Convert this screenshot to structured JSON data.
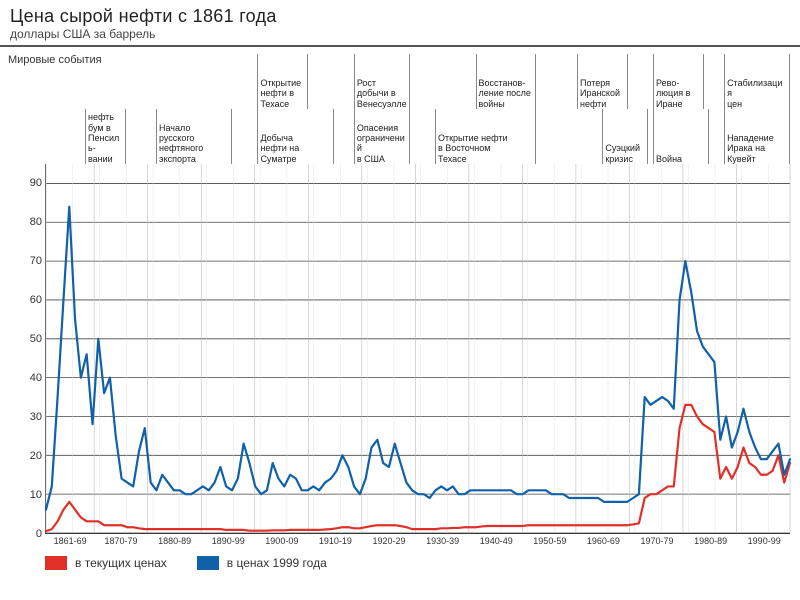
{
  "title": "Цена сырой нефти с 1861 года",
  "subtitle": "доллары США за баррель",
  "events_title": "Мировые события",
  "chart": {
    "type": "line",
    "background_color": "#ffffff",
    "grid_color_major": "#444444",
    "grid_color_minor": "#bbbbbb",
    "axis_color": "#333333",
    "x_year_start": 1861,
    "x_year_end": 2000,
    "ylim": [
      0,
      95
    ],
    "yticks": [
      0,
      10,
      20,
      30,
      40,
      50,
      60,
      70,
      80,
      90
    ],
    "xticks_major": [
      1861,
      1870,
      1880,
      1890,
      1900,
      1910,
      1920,
      1930,
      1940,
      1950,
      1960,
      1970,
      1980,
      1990,
      2000
    ],
    "xtick_labels": [
      "1861-69",
      "1870-79",
      "1880-89",
      "1890-99",
      "1900-09",
      "1910-19",
      "1920-29",
      "1930-39",
      "1940-49",
      "1950-59",
      "1960-69",
      "1970-79",
      "1980-89",
      "1990-99"
    ],
    "label_fontsize": 11,
    "title_fontsize": 18,
    "line_width": 2.2,
    "series": [
      {
        "name": "в текущих ценах",
        "color": "#e03028",
        "values": [
          0.5,
          1,
          3,
          6,
          8,
          6,
          4,
          3,
          3,
          3,
          2,
          2,
          2,
          2,
          1.5,
          1.5,
          1.2,
          1,
          1,
          1,
          1,
          1,
          1,
          1,
          1,
          1,
          1,
          1,
          1,
          1,
          1,
          0.8,
          0.8,
          0.8,
          0.8,
          0.6,
          0.6,
          0.6,
          0.6,
          0.7,
          0.7,
          0.7,
          0.8,
          0.8,
          0.8,
          0.8,
          0.8,
          0.8,
          0.9,
          1,
          1.2,
          1.5,
          1.5,
          1.2,
          1.2,
          1.5,
          1.8,
          2,
          2,
          2,
          2,
          1.8,
          1.5,
          1,
          1,
          1,
          1,
          1,
          1.2,
          1.2,
          1.3,
          1.3,
          1.5,
          1.5,
          1.5,
          1.7,
          1.8,
          1.8,
          1.8,
          1.8,
          1.8,
          1.8,
          1.8,
          2,
          2,
          2,
          2,
          2,
          2,
          2,
          2,
          2,
          2,
          2,
          2,
          2,
          2,
          2,
          2,
          2,
          2,
          2.2,
          2.5,
          9,
          10,
          10,
          11,
          12,
          12,
          27,
          33,
          33,
          30,
          28,
          27,
          26,
          14,
          17,
          14,
          17,
          22,
          18,
          17,
          15,
          15,
          16,
          20,
          13,
          18
        ]
      },
      {
        "name": "в ценах 1999 года",
        "color": "#1060aa",
        "values": [
          6,
          12,
          35,
          60,
          84,
          55,
          40,
          46,
          28,
          50,
          36,
          40,
          25,
          14,
          13,
          12,
          21,
          27,
          13,
          11,
          15,
          13,
          11,
          11,
          10,
          10,
          11,
          12,
          11,
          13,
          17,
          12,
          11,
          14,
          23,
          18,
          12,
          10,
          11,
          18,
          14,
          12,
          15,
          14,
          11,
          11,
          12,
          11,
          13,
          14,
          16,
          20,
          17,
          12,
          10,
          14,
          22,
          24,
          18,
          17,
          23,
          18,
          13,
          11,
          10,
          10,
          9,
          11,
          12,
          11,
          12,
          10,
          10,
          11,
          11,
          11,
          11,
          11,
          11,
          11,
          11,
          10,
          10,
          11,
          11,
          11,
          11,
          10,
          10,
          10,
          9,
          9,
          9,
          9,
          9,
          9,
          8,
          8,
          8,
          8,
          8,
          9,
          10,
          35,
          33,
          34,
          35,
          34,
          32,
          60,
          70,
          62,
          52,
          48,
          46,
          44,
          24,
          30,
          22,
          26,
          32,
          26,
          22,
          19,
          19,
          21,
          23,
          15,
          19
        ]
      }
    ]
  },
  "events": [
    {
      "row": 1,
      "start": 1861,
      "end": 1869,
      "label": "нефть\nбум в\nПенсиль-\nвании"
    },
    {
      "row": 1,
      "start": 1875,
      "end": 1890,
      "label": "Начало\nрусского\nнефтяного\nэкспорта"
    },
    {
      "row": 0,
      "start": 1895,
      "end": 1905,
      "label": "Открытие\nнефти в\nТехасе"
    },
    {
      "row": 1,
      "start": 1895,
      "end": 1910,
      "label": "Добыча\nнефти на\nСуматре"
    },
    {
      "row": 0,
      "start": 1914,
      "end": 1925,
      "label": "Рост\nдобычи в\nВенесуэлле"
    },
    {
      "row": 1,
      "start": 1914,
      "end": 1925,
      "label": "Опасения\nограничений\nв США"
    },
    {
      "row": 0,
      "start": 1938,
      "end": 1950,
      "label": "Восстанов-\nление после\nвойны"
    },
    {
      "row": 1,
      "start": 1930,
      "end": 1950,
      "label": "Открытие нефти\nв Восточном\nТехасе"
    },
    {
      "row": 0,
      "start": 1958,
      "end": 1968,
      "label": "Потеря\nИранской\nнефти"
    },
    {
      "row": 1,
      "start": 1963,
      "end": 1972,
      "label": "Суэцкий\nкризис"
    },
    {
      "row": 0,
      "start": 1973,
      "end": 1983,
      "label": "Рево-\nлюция в\nИране"
    },
    {
      "row": 1,
      "start": 1973,
      "end": 1984,
      "label": "Война"
    },
    {
      "row": 0,
      "start": 1987,
      "end": 2000,
      "label": "Стабилизация\nцен"
    },
    {
      "row": 1,
      "start": 1987,
      "end": 2000,
      "label": "Нападение\nИрака на\nКувейт"
    }
  ],
  "legend": {
    "items": [
      {
        "color": "#e03028",
        "label": "в текущих ценах"
      },
      {
        "color": "#1060aa",
        "label": "в ценах 1999 года"
      }
    ]
  }
}
